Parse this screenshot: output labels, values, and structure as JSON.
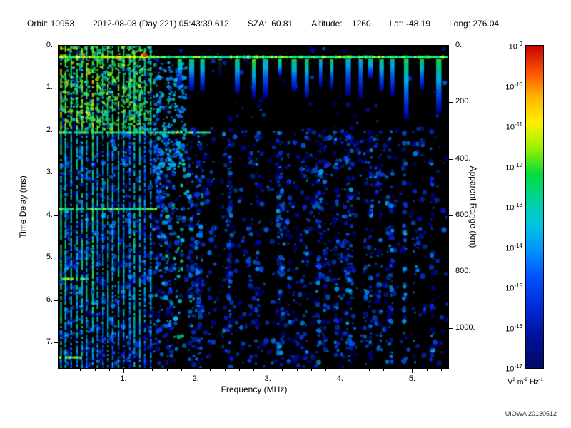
{
  "header": {
    "items": [
      "Orbit: 10953",
      "2012-08-08 (Day 221) 05:43:39.612",
      "SZA:  60.81",
      "Altitude:    1260",
      "Lat: -48.19",
      "Long: 276.04"
    ]
  },
  "footer": {
    "credit": "UIOWA 20130512"
  },
  "colors": {
    "page_background": "#ffffff",
    "plot_background": "#000000",
    "text": "#000000"
  },
  "colorbar": {
    "base": "10",
    "exponents": [
      "-9",
      "-10",
      "-11",
      "-12",
      "-13",
      "-14",
      "-15",
      "-16",
      "-17"
    ],
    "unit": {
      "v": "V",
      "v_exp": "2",
      "m": " m",
      "m_exp": "-2",
      "hz": " Hz",
      "hz_exp": "-1"
    },
    "gradient": [
      {
        "c": "#c80000",
        "p": 0
      },
      {
        "c": "#ff5a00",
        "p": 9
      },
      {
        "c": "#ffb400",
        "p": 16
      },
      {
        "c": "#fff000",
        "p": 24
      },
      {
        "c": "#96f000",
        "p": 32
      },
      {
        "c": "#00dc3c",
        "p": 40
      },
      {
        "c": "#00d2a0",
        "p": 48
      },
      {
        "c": "#00c8dc",
        "p": 55
      },
      {
        "c": "#0096ff",
        "p": 63
      },
      {
        "c": "#0050ff",
        "p": 72
      },
      {
        "c": "#0028d2",
        "p": 82
      },
      {
        "c": "#000f96",
        "p": 91
      },
      {
        "c": "#000a64",
        "p": 100
      }
    ]
  },
  "chart_data": {
    "type": "heatmap",
    "title": "",
    "xlabel": "Frequency (MHz)",
    "ylabel": "Time Delay (ms)",
    "y2label": "Apparent Range (km)",
    "x_range": [
      0.1,
      5.5
    ],
    "y_range": [
      0,
      7.6
    ],
    "x_ticks": [
      1,
      2,
      3,
      4,
      5
    ],
    "x_tick_labels": [
      "1.",
      "2.",
      "3.",
      "4.",
      "5."
    ],
    "y_ticks": [
      0,
      1,
      2,
      3,
      4,
      5,
      6,
      7
    ],
    "y_tick_labels": [
      "0.",
      "1.",
      "2.",
      "3.",
      "4.",
      "5.",
      "6.",
      "7."
    ],
    "y2_ticks": [
      0,
      200,
      400,
      600,
      800,
      1000
    ],
    "y2_tick_labels": [
      "0.",
      "200.",
      "400.",
      "600.",
      "800.",
      "1000."
    ],
    "y2_km_per_ms": 150,
    "color_scale": {
      "min_exp": -17,
      "max_exp": -9,
      "units": "V^2 m^-2 Hz^-1",
      "scale": "log"
    },
    "render_seed": 20130512,
    "features": {
      "surface_band": {
        "time_ms": 0.27,
        "freq_range": [
          0.1,
          5.5
        ],
        "intensity": "green-yellow, spans all frequencies"
      },
      "plasma_stripes": {
        "freq_start": 0.13,
        "freq_end": 1.38,
        "spacing": 0.073,
        "note": "vertical electron-plasma harmonic lines, green, full delay extent, brightest for delay < 2 ms"
      },
      "cyclotron_lines": [
        {
          "time_ms": 2.05,
          "freq_max": 2.2
        },
        {
          "time_ms": 3.85,
          "freq_max": 1.45
        },
        {
          "time_ms": 5.5,
          "freq_max": 0.5
        },
        {
          "time_ms": 7.35,
          "freq_max": 0.4
        }
      ],
      "droplets": {
        "freq_range": [
          1.78,
          5.45
        ],
        "time_start": 0.35,
        "note": "blue echo smears hanging below surface band, longer near 4.5-5.3 MHz"
      },
      "red_spot": {
        "freq": 1.3,
        "time_ms": 0.22
      },
      "interference_gap_freq": 2.33,
      "diffuse_noise": {
        "note": "faint blue speckle for delays > 2 ms, mostly 0.1-4.2 MHz, sparse at high frequency"
      }
    }
  }
}
